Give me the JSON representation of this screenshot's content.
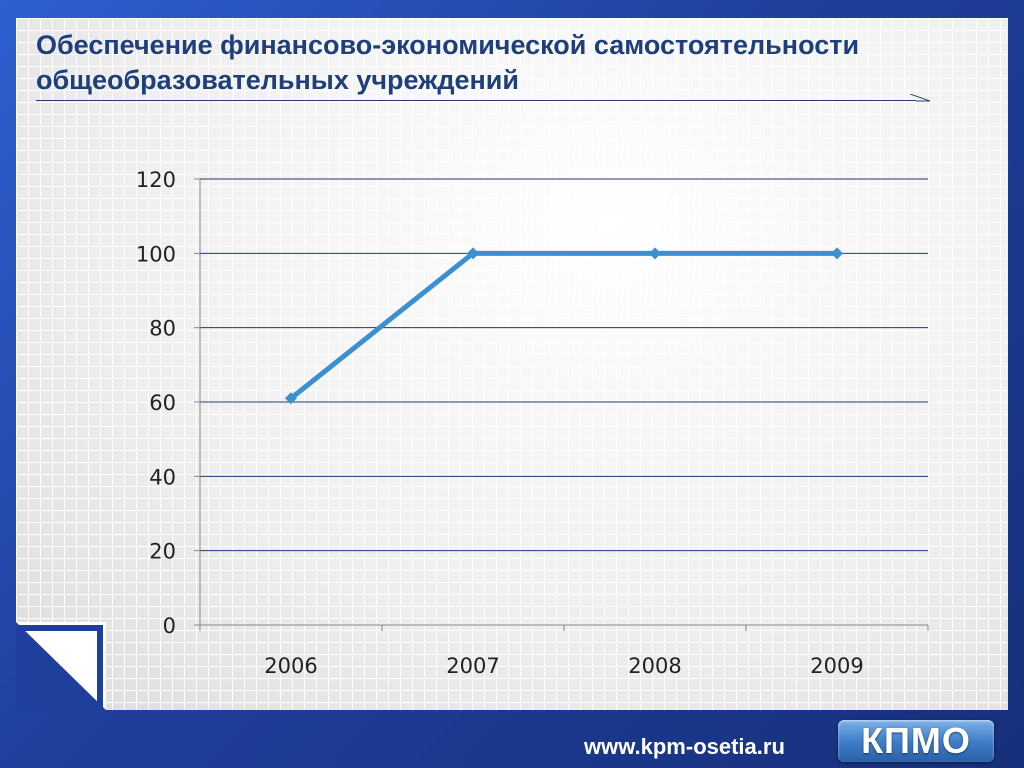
{
  "slide": {
    "title_line1": "Обеспечение  финансово-экономической самостоятельности",
    "title_line2": "общеобразовательных учреждений",
    "footer_url": "www.kpm-osetia.ru",
    "logo_text": "КПМО"
  },
  "colors": {
    "line": "#3c8fd0",
    "title": "#1e3f7a",
    "grid": "#1e3a6e"
  },
  "chart_data": {
    "type": "line",
    "categories": [
      "2006",
      "2007",
      "2008",
      "2009"
    ],
    "series": [
      {
        "values": [
          61,
          100,
          100,
          100
        ]
      }
    ],
    "ylim": [
      0,
      120
    ],
    "yticks": [
      "0",
      "20",
      "40",
      "60",
      "80",
      "100",
      "120"
    ],
    "grid": true,
    "legend": "none"
  }
}
